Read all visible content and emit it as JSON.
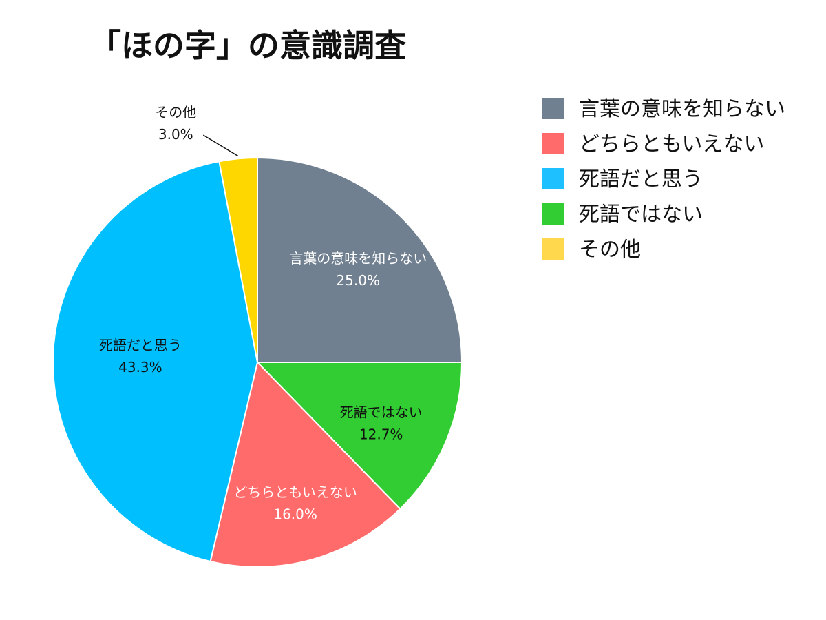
{
  "chart_data": {
    "type": "pie",
    "title": "「ほの字」の意識調査",
    "legend_position": "top-right",
    "slices": [
      {
        "label": "言葉の意味を知らない",
        "value": 25.0,
        "display": "25.0%",
        "color": "#708090",
        "legend_color": "#708090",
        "label_color": "#ffffff"
      },
      {
        "label": "死語ではない",
        "value": 12.7,
        "display": "12.7%",
        "color": "#32cd32",
        "legend_color": "#32cd32",
        "label_color": "#111111"
      },
      {
        "label": "どちらともいえない",
        "value": 16.0,
        "display": "16.0%",
        "color": "#ff6a6a",
        "legend_color": "#ff6a6a",
        "label_color": "#ffffff"
      },
      {
        "label": "死語だと思う",
        "value": 43.3,
        "display": "43.3%",
        "color": "#00bfff",
        "legend_color": "#1ec0ff",
        "label_color": "#111111"
      },
      {
        "label": "その他",
        "value": 3.0,
        "display": "3.0%",
        "color": "#ffd700",
        "legend_color": "#ffd84d",
        "label_color": "#111111",
        "outside_label": true
      }
    ],
    "legend_order": [
      "言葉の意味を知らない",
      "どちらともいえない",
      "死語だと思う",
      "死語ではない",
      "その他"
    ]
  }
}
